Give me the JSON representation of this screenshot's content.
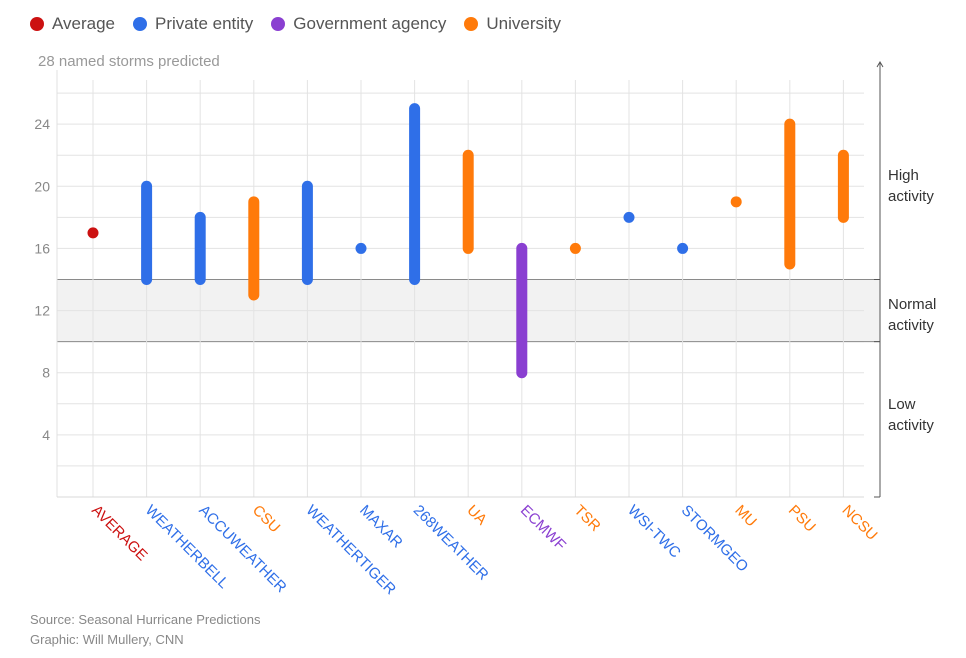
{
  "legend": [
    {
      "label": "Average",
      "color": "#cc1111"
    },
    {
      "label": "Private entity",
      "color": "#2f6fe8"
    },
    {
      "label": "Government agency",
      "color": "#8a3fd1"
    },
    {
      "label": "University",
      "color": "#ff7a0a"
    }
  ],
  "zones": {
    "high": [
      "High",
      "activity"
    ],
    "normal": [
      "Normal",
      "activity"
    ],
    "low": [
      "Low",
      "activity"
    ]
  },
  "footer": {
    "source": "Source: Seasonal Hurricane Predictions",
    "graphic": "Graphic: Will Mullery, CNN"
  },
  "chart_data": {
    "type": "range",
    "title": "28 named storms predicted",
    "ylim": [
      0,
      28
    ],
    "yticks": [
      4,
      8,
      12,
      16,
      20,
      24
    ],
    "normal_band": [
      10,
      14
    ],
    "categories": [
      "AVERAGE",
      "WEATHERBELL",
      "ACCUWEATHER",
      "CSU",
      "WEATHERTIGER",
      "MAXAR",
      "268WEATHER",
      "UA",
      "ECMWF",
      "TSR",
      "WSI-TWC",
      "STORMGEO",
      "MU",
      "PSU",
      "NCSU"
    ],
    "kinds": [
      "Average",
      "Private entity",
      "Private entity",
      "University",
      "Private entity",
      "Private entity",
      "Private entity",
      "University",
      "Government agency",
      "University",
      "Private entity",
      "Private entity",
      "University",
      "University",
      "University"
    ],
    "low": [
      17,
      14,
      14,
      13,
      14,
      16,
      14,
      16,
      8,
      16,
      18,
      16,
      19,
      15,
      18
    ],
    "high": [
      17,
      20,
      18,
      19,
      20,
      16,
      25,
      22,
      16,
      16,
      18,
      16,
      19,
      24,
      22
    ]
  }
}
